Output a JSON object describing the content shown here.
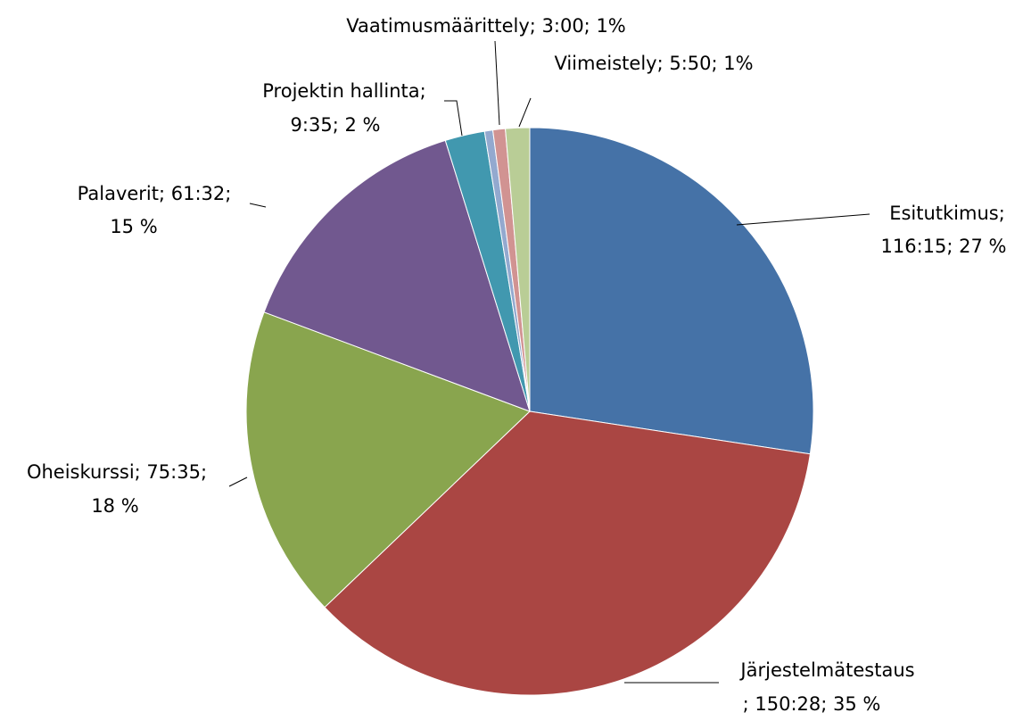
{
  "chart_data": {
    "type": "pie",
    "labels": [
      [
        "Esitutkimus;",
        "116:15; 27 %"
      ],
      [
        "Järjestelmätestaus",
        "; 150:28; 35 %"
      ],
      [
        "Oheiskurssi; 75:35;",
        "18 %"
      ],
      [
        "Palaverit; 61:32;",
        "15 %"
      ],
      [
        "Projektin hallinta;",
        "9:35; 2 %"
      ],
      null,
      [
        "Vaatimusmäärittely; 3:00; 1%"
      ],
      [
        "Viimeistely; 5:50; 1%"
      ]
    ],
    "values": [
      6975,
      9028,
      4535,
      3692,
      575,
      120,
      180,
      350
    ],
    "colors": [
      "#4572a7",
      "#aa4643",
      "#89a54e",
      "#71588f",
      "#4198af",
      "#93a9cf",
      "#d19392",
      "#b9cd96"
    ]
  }
}
